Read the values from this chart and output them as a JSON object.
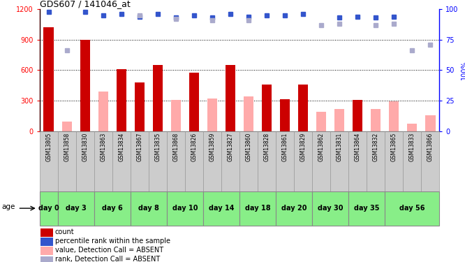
{
  "title": "GDS607 / 141046_at",
  "samples": [
    "GSM13805",
    "GSM13858",
    "GSM13830",
    "GSM13863",
    "GSM13834",
    "GSM13867",
    "GSM13835",
    "GSM13868",
    "GSM13826",
    "GSM13859",
    "GSM13827",
    "GSM13860",
    "GSM13828",
    "GSM13861",
    "GSM13829",
    "GSM13862",
    "GSM13831",
    "GSM13864",
    "GSM13832",
    "GSM13865",
    "GSM13833",
    "GSM13866"
  ],
  "age_groups": [
    {
      "label": "day 0",
      "start": 0,
      "end": 1,
      "ncols": 1
    },
    {
      "label": "day 3",
      "start": 1,
      "end": 3,
      "ncols": 2
    },
    {
      "label": "day 6",
      "start": 3,
      "end": 5,
      "ncols": 2
    },
    {
      "label": "day 8",
      "start": 5,
      "end": 7,
      "ncols": 2
    },
    {
      "label": "day 10",
      "start": 7,
      "end": 9,
      "ncols": 2
    },
    {
      "label": "day 14",
      "start": 9,
      "end": 11,
      "ncols": 2
    },
    {
      "label": "day 18",
      "start": 11,
      "end": 13,
      "ncols": 2
    },
    {
      "label": "day 20",
      "start": 13,
      "end": 15,
      "ncols": 2
    },
    {
      "label": "day 30",
      "start": 15,
      "end": 17,
      "ncols": 2
    },
    {
      "label": "day 35",
      "start": 17,
      "end": 19,
      "ncols": 2
    },
    {
      "label": "day 56",
      "start": 19,
      "end": 22,
      "ncols": 3
    }
  ],
  "red_bars": [
    1020,
    0,
    900,
    0,
    610,
    480,
    650,
    0,
    575,
    0,
    650,
    0,
    455,
    310,
    460,
    0,
    0,
    305,
    0,
    0,
    0,
    0
  ],
  "pink_bars": [
    0,
    90,
    0,
    390,
    0,
    0,
    0,
    305,
    0,
    320,
    0,
    340,
    0,
    0,
    0,
    190,
    215,
    0,
    220,
    290,
    75,
    155
  ],
  "blue_dots_pct": [
    98,
    0,
    98,
    95,
    96,
    94,
    96,
    93,
    95,
    93,
    96,
    94,
    95,
    95,
    96,
    0,
    93,
    94,
    93,
    94,
    0,
    0
  ],
  "lav_dots_pct": [
    0,
    66,
    0,
    0,
    0,
    95,
    0,
    92,
    0,
    91,
    0,
    91,
    0,
    0,
    0,
    87,
    88,
    0,
    87,
    88,
    66,
    71
  ],
  "ylim_left": [
    0,
    1200
  ],
  "yticks_left": [
    0,
    300,
    600,
    900,
    1200
  ],
  "yticks_right": [
    0,
    25,
    50,
    75,
    100
  ],
  "red_color": "#cc0000",
  "pink_color": "#ffaaaa",
  "blue_color": "#3355cc",
  "lavender_color": "#aaaacc",
  "legend_items": [
    {
      "color": "#cc0000",
      "label": "count"
    },
    {
      "color": "#3355cc",
      "label": "percentile rank within the sample"
    },
    {
      "color": "#ffaaaa",
      "label": "value, Detection Call = ABSENT"
    },
    {
      "color": "#aaaacc",
      "label": "rank, Detection Call = ABSENT"
    }
  ]
}
